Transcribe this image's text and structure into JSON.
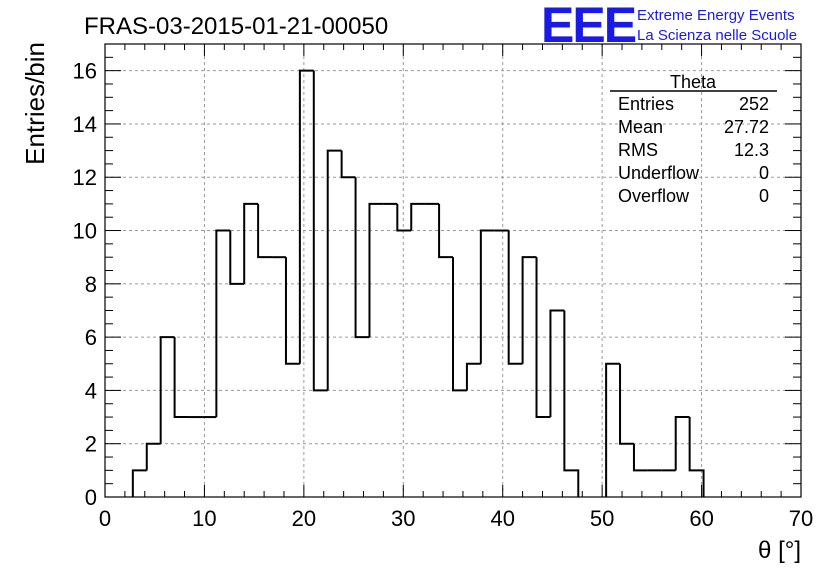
{
  "header": {
    "title": "FRAS-03-2015-01-21-00050",
    "logo_text": "EEE",
    "logo_line1": "Extreme Energy Events",
    "logo_line2": "La Scienza nelle Scuole",
    "logo_color": "#1a1ae6"
  },
  "stats": {
    "name": "Theta",
    "rows": [
      {
        "label": "Entries",
        "value": "252"
      },
      {
        "label": "Mean",
        "value": "27.72"
      },
      {
        "label": "RMS",
        "value": "12.3"
      },
      {
        "label": "Underflow",
        "value": "0"
      },
      {
        "label": "Overflow",
        "value": "0"
      }
    ]
  },
  "chart_data": {
    "type": "bar",
    "histogram": true,
    "title": "FRAS-03-2015-01-21-00050",
    "xlabel": "θ [°]",
    "ylabel": "Entries/bin",
    "xlim": [
      0,
      70
    ],
    "ylim": [
      0,
      17
    ],
    "bin_width": 1.4,
    "x_start": 0,
    "values": [
      0,
      0,
      1,
      2,
      6,
      3,
      3,
      3,
      10,
      8,
      11,
      9,
      9,
      5,
      16,
      4,
      13,
      12,
      6,
      11,
      11,
      10,
      11,
      11,
      9,
      4,
      5,
      10,
      10,
      5,
      9,
      3,
      7,
      1,
      0,
      0,
      5,
      2,
      1,
      1,
      1,
      3,
      1,
      0,
      0,
      0,
      0,
      0,
      0,
      0
    ],
    "x_ticks": [
      0,
      10,
      20,
      30,
      40,
      50,
      60,
      70
    ],
    "y_ticks": [
      0,
      2,
      4,
      6,
      8,
      10,
      12,
      14,
      16
    ],
    "grid": true,
    "line_color": "#000000",
    "grid_color": "#9a9a9a"
  }
}
